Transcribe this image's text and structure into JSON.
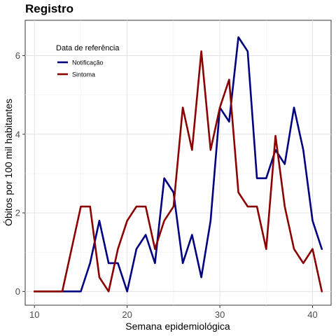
{
  "chart_data": {
    "type": "line",
    "title": "Registro",
    "xlabel": "Semana epidemiológica",
    "ylabel": "Óbitos por 100 mil habitantes",
    "xlim": [
      9,
      42
    ],
    "ylim": [
      -0.35,
      6.9
    ],
    "x_ticks": [
      10,
      20,
      30,
      40
    ],
    "y_ticks": [
      0,
      2,
      4,
      6
    ],
    "grid": true,
    "legend": {
      "title": "Data de referência",
      "position": "top-left"
    },
    "x": [
      10,
      11,
      12,
      13,
      14,
      15,
      16,
      17,
      18,
      19,
      20,
      21,
      22,
      23,
      24,
      25,
      26,
      27,
      28,
      29,
      30,
      31,
      32,
      33,
      34,
      35,
      36,
      37,
      38,
      39,
      40,
      41
    ],
    "series": [
      {
        "name": "Notificação",
        "color": "#000080",
        "values": [
          0,
          0,
          0,
          0,
          0,
          0,
          0.72,
          1.8,
          0.72,
          0.72,
          0,
          1.08,
          1.44,
          0.72,
          2.88,
          2.52,
          0.72,
          1.44,
          0.36,
          1.8,
          4.68,
          4.32,
          6.47,
          6.11,
          2.88,
          2.88,
          3.6,
          3.24,
          4.68,
          3.6,
          1.8,
          1.08
        ]
      },
      {
        "name": "Sintoma",
        "color": "#8b0000",
        "values": [
          0,
          0,
          0,
          0,
          1.08,
          2.16,
          2.16,
          0.36,
          0,
          1.08,
          1.8,
          2.16,
          2.16,
          1.08,
          1.8,
          2.16,
          4.68,
          3.6,
          6.11,
          3.6,
          4.68,
          5.39,
          2.52,
          2.16,
          2.16,
          1.08,
          3.96,
          2.16,
          1.08,
          0.72,
          1.08,
          0
        ]
      }
    ]
  }
}
